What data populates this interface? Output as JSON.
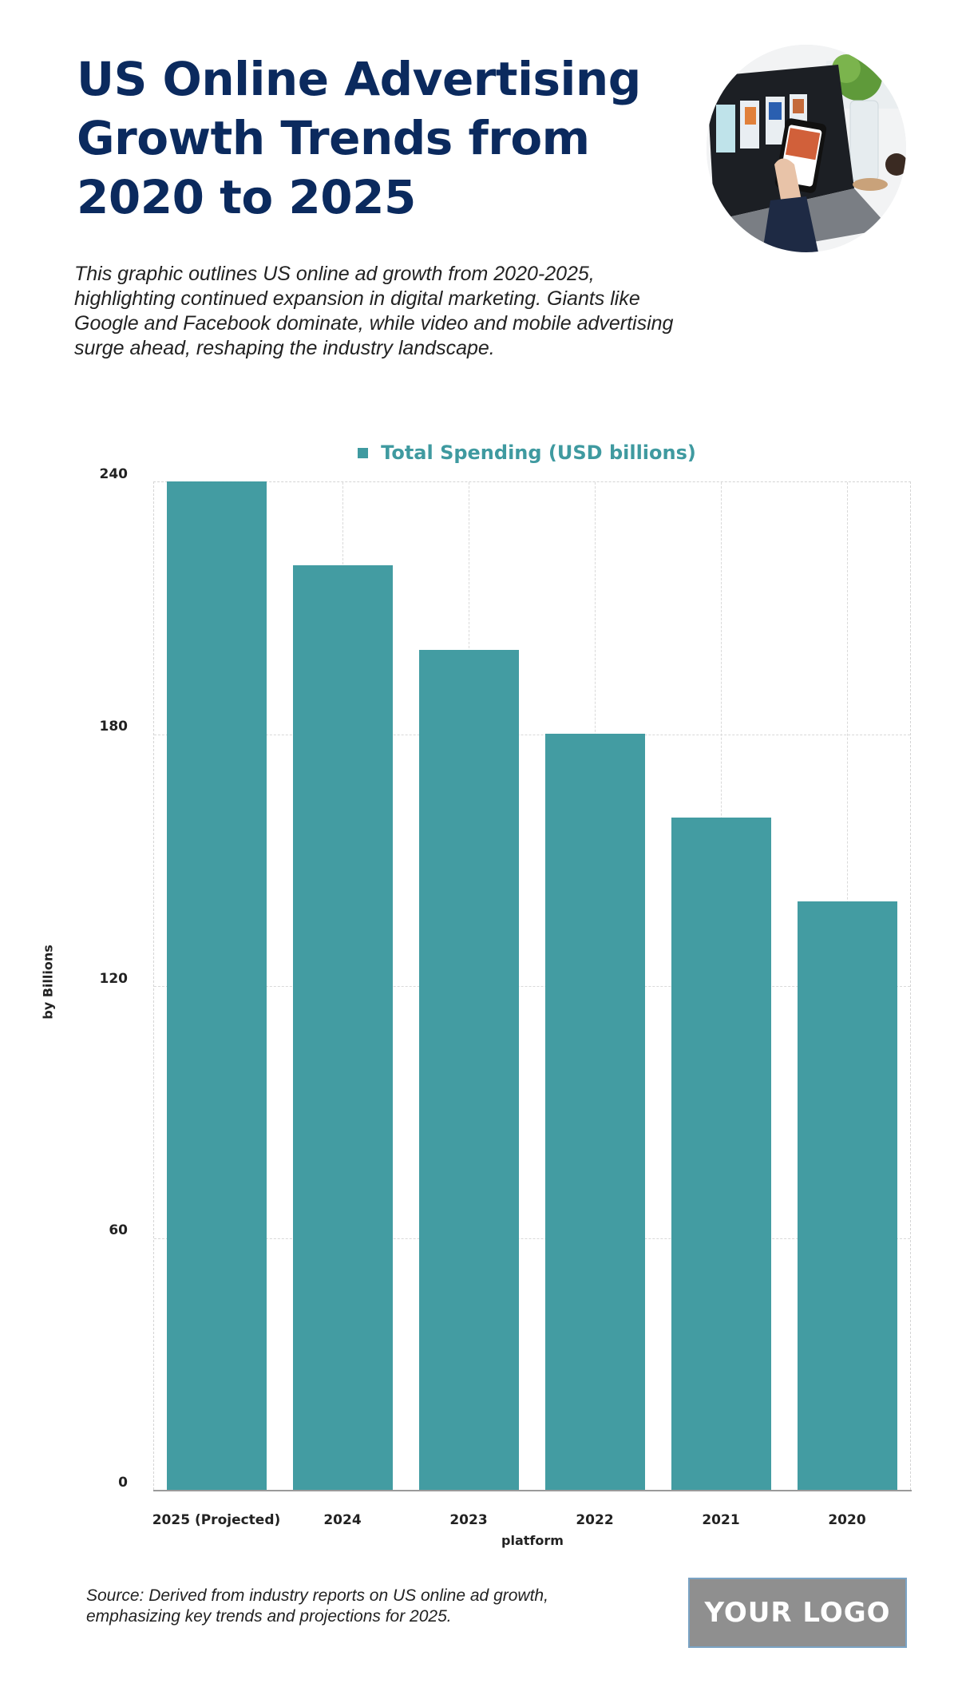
{
  "header": {
    "title": "US Online Advertising Growth Trends from 2020 to 2025",
    "description": "This graphic outlines US online ad growth from 2020-2025, highlighting continued expansion in digital marketing. Giants like Google and Facebook dominate, while video and mobile advertising surge ahead, reshaping the industry landscape.",
    "hero_image": "laptop-and-phone-photo"
  },
  "colors": {
    "title": "#0b2a5e",
    "bar": "#3f9aa0",
    "legend_text": "#3f9aa0",
    "logo_bg": "#8f8f8f"
  },
  "chart_data": {
    "type": "bar",
    "title": "",
    "categories": [
      "2025 (Projected)",
      "2024",
      "2023",
      "2022",
      "2021",
      "2020"
    ],
    "series": [
      {
        "name": "Total Spending (USD billions)",
        "values": [
          240,
          220,
          200,
          180,
          160,
          140
        ]
      }
    ],
    "values": [
      240,
      220,
      200,
      180,
      160,
      140
    ],
    "xlabel": "platform",
    "ylabel": "by Billions",
    "ylim": [
      0,
      240
    ],
    "yticks": [
      "0",
      "60",
      "120",
      "180",
      "240"
    ],
    "grid": true,
    "legend_position": "top"
  },
  "legend": {
    "label": "Total Spending (USD billions)"
  },
  "footer": {
    "source": "Source: Derived from industry reports on US online ad growth, emphasizing key trends and projections for 2025.",
    "logo": "YOUR LOGO"
  }
}
